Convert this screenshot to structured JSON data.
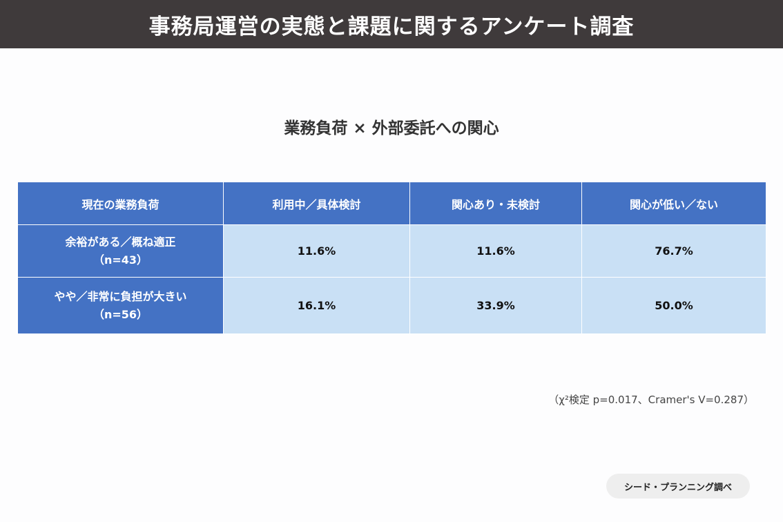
{
  "header": {
    "title": "事務局運営の実態と課題に関するアンケート調査"
  },
  "subtitle": "業務負荷 × 外部委託への関心",
  "table": {
    "columns": [
      "現在の業務負荷",
      "利用中／具体検討",
      "関心あり・未検討",
      "関心が低い／ない"
    ],
    "rows": [
      {
        "label": "余裕がある／概ね適正",
        "n": "（n=43）",
        "values": [
          "11.6%",
          "11.6%",
          "76.7%"
        ]
      },
      {
        "label": "やや／非常に負担が大きい",
        "n": "（n=56）",
        "values": [
          "16.1%",
          "33.9%",
          "50.0%"
        ]
      }
    ]
  },
  "note": "（χ²検定 p=0.017、Cramer's V=0.287）",
  "source_badge": "シード・プランニング調べ",
  "colors": {
    "header_bar": "#3f3a3b",
    "table_header": "#4472c4",
    "table_cell": "#c9e0f5"
  }
}
